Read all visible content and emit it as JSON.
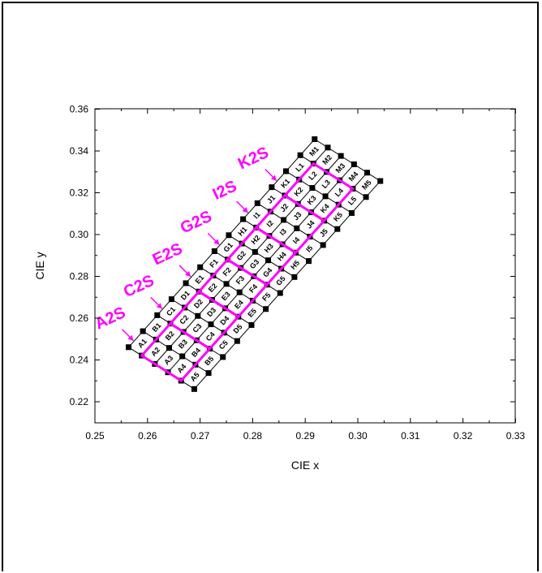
{
  "chart_data": {
    "type": "scatter",
    "xlabel": "CIE x",
    "ylabel": "CIE y",
    "xlim": [
      0.25,
      0.335
    ],
    "ylim": [
      0.215,
      0.36
    ],
    "xticks": [
      "0.25",
      "0.26",
      "0.27",
      "0.28",
      "0.29",
      "0.30",
      "0.31",
      "0.32",
      "0.33"
    ],
    "yticks": [
      "0.22",
      "0.24",
      "0.26",
      "0.28",
      "0.30",
      "0.32",
      "0.34",
      "0.36"
    ],
    "grid": false,
    "bin_labels": [
      [
        "A1",
        "A2",
        "A3",
        "A4",
        "A5"
      ],
      [
        "B1",
        "B2",
        "B3",
        "B4",
        "B5"
      ],
      [
        "C1",
        "C2",
        "C3",
        "C4",
        "C5"
      ],
      [
        "D1",
        "D2",
        "D3",
        "D4",
        "D5"
      ],
      [
        "E1",
        "E2",
        "E3",
        "E4",
        "E5"
      ],
      [
        "F1",
        "F2",
        "F3",
        "F4",
        "F5"
      ],
      [
        "G1",
        "G2",
        "G3",
        "G4",
        "G5"
      ],
      [
        "H1",
        "H2",
        "H3",
        "H4",
        "H5"
      ],
      [
        "I1",
        "I2",
        "I3",
        "I4",
        "I5"
      ],
      [
        "J1",
        "J2",
        "J3",
        "J4",
        "J5"
      ],
      [
        "K1",
        "K2",
        "K3",
        "K4",
        "K5"
      ],
      [
        "L1",
        "L2",
        "L3",
        "L4",
        "L5"
      ],
      [
        "M1",
        "M2",
        "M3",
        "M4",
        "M5"
      ]
    ],
    "grid_corner_points": {
      "origin": [
        0.26,
        0.246
      ],
      "column_step": [
        0.00425,
        0.00765
      ],
      "row_step": [
        0.0039,
        -0.004
      ],
      "columns": 14,
      "rows": 6
    },
    "super_bins": [
      {
        "label": "A2S",
        "columns": [
          0,
          2
        ]
      },
      {
        "label": "C2S",
        "columns": [
          2,
          4
        ]
      },
      {
        "label": "E2S",
        "columns": [
          4,
          6
        ]
      },
      {
        "label": "G2S",
        "columns": [
          6,
          8
        ]
      },
      {
        "label": "I2S",
        "columns": [
          8,
          10
        ]
      },
      {
        "label": "K2S",
        "columns": [
          10,
          12
        ]
      }
    ],
    "super_bin_rows": [
      1,
      4
    ],
    "colors": {
      "grid": "#000000",
      "super_bin": "#ff00ff",
      "point": "#000000"
    }
  }
}
